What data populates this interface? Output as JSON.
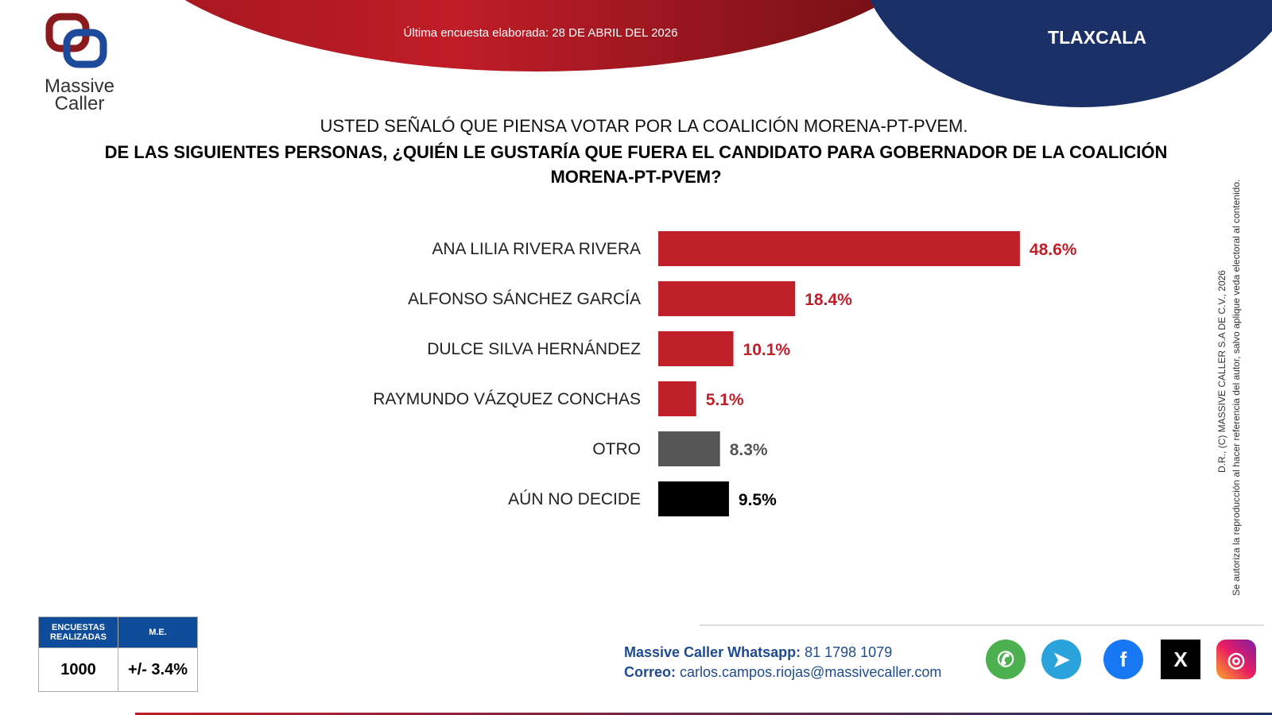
{
  "header": {
    "date_text": "Última encuesta elaborada: 28 DE ABRIL DEL 2026",
    "state": "TLAXCALA",
    "logo_text": "Massive Caller"
  },
  "question": {
    "line1": "USTED SEÑALÓ QUE PIENSA VOTAR POR LA COALICIÓN MORENA-PT-PVEM.",
    "line2": "DE LAS SIGUIENTES PERSONAS, ¿QUIÉN LE GUSTARÍA QUE FUERA EL CANDIDATO PARA GOBERNADOR DE LA COALICIÓN MORENA-PT-PVEM?"
  },
  "chart_data": {
    "type": "bar",
    "orientation": "horizontal",
    "categories": [
      "ANA LILIA RIVERA RIVERA",
      "ALFONSO SÁNCHEZ GARCÍA",
      "DULCE SILVA HERNÁNDEZ",
      "RAYMUNDO VÁZQUEZ CONCHAS",
      "OTRO",
      "AÚN NO DECIDE"
    ],
    "values": [
      48.6,
      18.4,
      10.1,
      5.1,
      8.3,
      9.5
    ],
    "data_labels": [
      "48.6%",
      "18.4%",
      "10.1%",
      "5.1%",
      "8.3%",
      "9.5%"
    ],
    "colors": [
      "#c0202a",
      "#c0202a",
      "#c0202a",
      "#c0202a",
      "#555555",
      "#000000"
    ],
    "label_colors": [
      "#c0202a",
      "#c0202a",
      "#c0202a",
      "#c0202a",
      "#555555",
      "#000000"
    ],
    "grid": false
  },
  "legal": {
    "line1": "D.R., (C) MASSIVE CALLER S.A DE C.V., 2026",
    "line2": "Se autoriza la reproducción al hacer referencia del autor, salvo aplique veda electoral al contenido."
  },
  "stats": {
    "h1": "ENCUESTAS REALIZADAS",
    "h2": "M.E.",
    "v1": "1000",
    "v2": "+/- 3.4%"
  },
  "contact": {
    "wa_label": "Massive Caller Whatsapp:",
    "wa_value": "81 1798 1079",
    "mail_label": "Correo:",
    "mail_value": "carlos.campos.riojas@massivecaller.com"
  },
  "social": [
    "whatsapp",
    "telegram",
    "facebook",
    "x",
    "instagram"
  ]
}
